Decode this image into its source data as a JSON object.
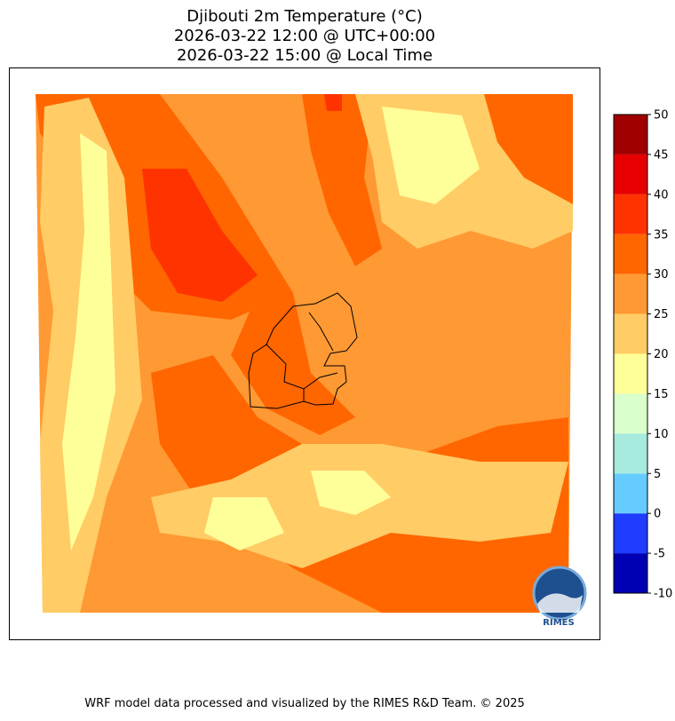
{
  "title": [
    "Djibouti 2m Temperature (°C)",
    "2026-03-22 12:00 @ UTC+00:00",
    "2026-03-22 15:00 @ Local Time"
  ],
  "colorbar": {
    "levels": [
      -10,
      -5,
      0,
      5,
      10,
      15,
      20,
      25,
      30,
      35,
      40,
      45,
      50
    ],
    "colors": [
      "#0000b3",
      "#1f3cff",
      "#66ccff",
      "#a6ebdd",
      "#d9ffcc",
      "#ffff99",
      "#ffcc66",
      "#ff9933",
      "#ff6600",
      "#ff3300",
      "#e60000",
      "#a00000"
    ]
  },
  "logo": "RIMES",
  "footer": "WRF model data processed and visualized by the RIMES R&D Team. © 2025"
}
